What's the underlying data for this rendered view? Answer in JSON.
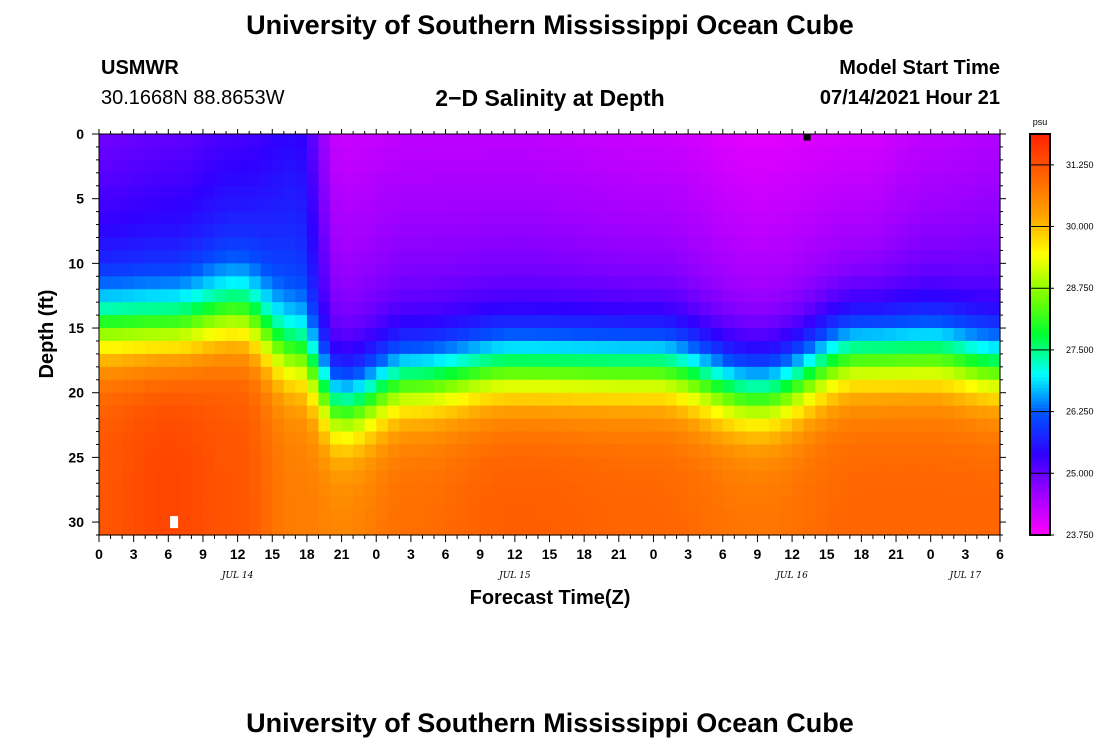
{
  "header": {
    "title_top": "University of Southern Mississippi Ocean Cube",
    "station_name": "USMWR",
    "station_coords": "30.1668N  88.8653W",
    "plot_title": "2−D Salinity at Depth",
    "model_label": "Model Start Time",
    "model_time": "07/14/2021 Hour 21"
  },
  "footer": {
    "title_bottom": "University of Southern Mississippi Ocean Cube"
  },
  "chart_data": {
    "type": "heatmap",
    "title": "2−D Salinity at Depth",
    "xlabel": "Forecast Time(Z)",
    "ylabel": "Depth (ft)",
    "xlim": [
      0,
      78
    ],
    "ylim": [
      0,
      31
    ],
    "x_tick_labels": [
      "0",
      "3",
      "6",
      "9",
      "12",
      "15",
      "18",
      "21",
      "0",
      "3",
      "6",
      "9",
      "12",
      "15",
      "18",
      "21",
      "0",
      "3",
      "6",
      "9",
      "12",
      "15",
      "18",
      "21",
      "0",
      "3",
      "6"
    ],
    "y_ticks": [
      0,
      5,
      10,
      15,
      20,
      25,
      30
    ],
    "date_labels": [
      {
        "text": "JUL 14",
        "x": 12
      },
      {
        "text": "JUL 15",
        "x": 36
      },
      {
        "text": "JUL 16",
        "x": 60
      },
      {
        "text": "JUL 17",
        "x": 75
      }
    ],
    "colorbar": {
      "unit": "psu",
      "min": 23.75,
      "max": 31.875,
      "tick_labels": [
        "31.250",
        "30.000",
        "28.750",
        "27.500",
        "26.250",
        "25.000",
        "23.750"
      ],
      "tick_values": [
        31.25,
        30.0,
        28.75,
        27.5,
        26.25,
        25.0,
        23.75
      ],
      "colors": [
        "#ff00ff",
        "#a000ff",
        "#3000ff",
        "#0050ff",
        "#00ffff",
        "#00ff30",
        "#80ff00",
        "#ffff00",
        "#ffa000",
        "#ff6000",
        "#ff2000"
      ]
    },
    "salinity_profile_times": [
      0,
      6,
      12,
      17,
      21,
      27,
      36,
      48,
      57,
      66,
      72,
      78
    ],
    "surface_salinity_psu": [
      24.9,
      25.0,
      25.2,
      25.4,
      24.2,
      24.3,
      24.3,
      24.2,
      24.0,
      24.1,
      24.3,
      24.4
    ],
    "halocline_depth_ft": [
      12,
      12,
      11,
      14,
      18,
      16,
      15,
      15,
      17,
      14,
      14,
      15
    ],
    "bottom_salinity_psu": [
      31.2,
      31.4,
      31.2,
      30.7,
      30.6,
      30.9,
      31.1,
      31.0,
      30.8,
      31.0,
      31.0,
      31.0
    ],
    "markers": [
      {
        "x": 6.5,
        "depth": 30,
        "color": "#ffffff"
      },
      {
        "x": 61.3,
        "depth": 0,
        "color": "#000000"
      }
    ]
  }
}
